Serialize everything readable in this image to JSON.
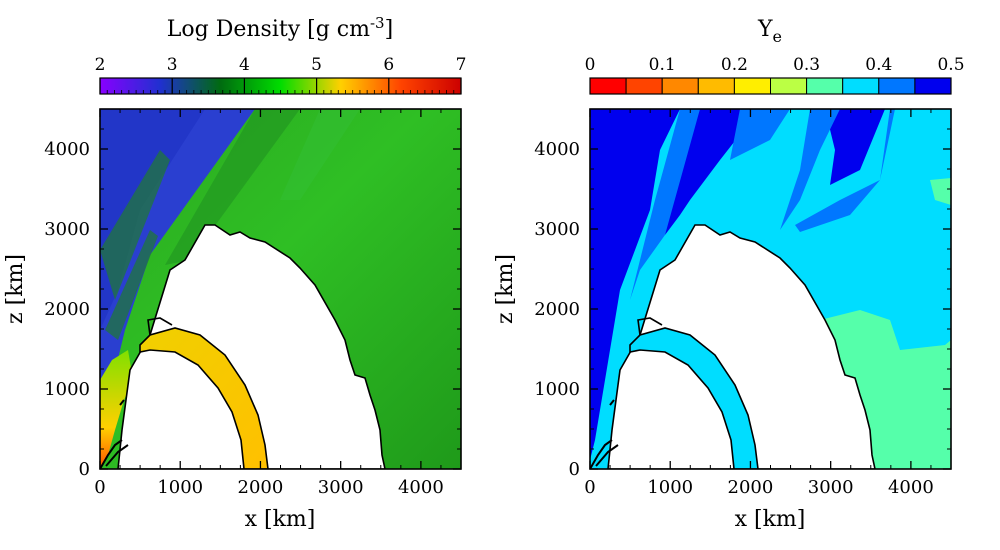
{
  "chart_data": [
    {
      "type": "heatmap",
      "id": "density",
      "title_main": "Log Density [g cm",
      "title_exp": "-3",
      "title_close": "]",
      "xlabel": "x [km]",
      "ylabel": "z [km]",
      "xlim": [
        0,
        4500
      ],
      "ylim": [
        0,
        4500
      ],
      "xticks": [
        0,
        1000,
        2000,
        3000,
        4000
      ],
      "yticks": [
        0,
        1000,
        2000,
        3000,
        4000
      ],
      "colorbar": {
        "range": [
          2,
          7
        ],
        "ticks": [
          2,
          3,
          4,
          5,
          6,
          7
        ],
        "continuous": true,
        "stops": [
          "#8800ff",
          "#2030d0",
          "#006b10",
          "#00dd00",
          "#ffd000",
          "#ff4400",
          "#cc0000"
        ]
      },
      "regions": [
        {
          "name": "background",
          "value": 3.9
        },
        {
          "name": "polar low-density funnel",
          "value": 2.8
        },
        {
          "name": "inner shell",
          "value": 5.3
        },
        {
          "name": "axis jet near origin",
          "value": 5.6
        }
      ]
    },
    {
      "type": "heatmap",
      "id": "ye",
      "title_main": "Y",
      "title_sub": "e",
      "xlabel": "x [km]",
      "ylabel": "z [km]",
      "xlim": [
        0,
        4500
      ],
      "ylim": [
        0,
        4500
      ],
      "xticks": [
        0,
        1000,
        2000,
        3000,
        4000
      ],
      "yticks": [
        0,
        1000,
        2000,
        3000,
        4000
      ],
      "colorbar": {
        "range": [
          0,
          0.5
        ],
        "ticks": [
          "0",
          "0.1",
          "0.2",
          "0.3",
          "0.4",
          "0.5"
        ],
        "tick_values": [
          0,
          0.1,
          0.2,
          0.3,
          0.4,
          0.5
        ],
        "continuous": false,
        "colors": [
          "#ff0000",
          "#ff4400",
          "#ff8800",
          "#ffbb00",
          "#ffee00",
          "#bbff44",
          "#55ffaa",
          "#00ddff",
          "#0077ff",
          "#0000ee"
        ]
      },
      "regions": [
        {
          "name": "polar funnel",
          "value": 0.48
        },
        {
          "name": "streaks",
          "value": 0.43
        },
        {
          "name": "equatorial ejecta",
          "value": 0.38
        },
        {
          "name": "outer equatorial patch",
          "value": 0.33
        },
        {
          "name": "inner shell",
          "value": 0.38
        }
      ]
    }
  ]
}
